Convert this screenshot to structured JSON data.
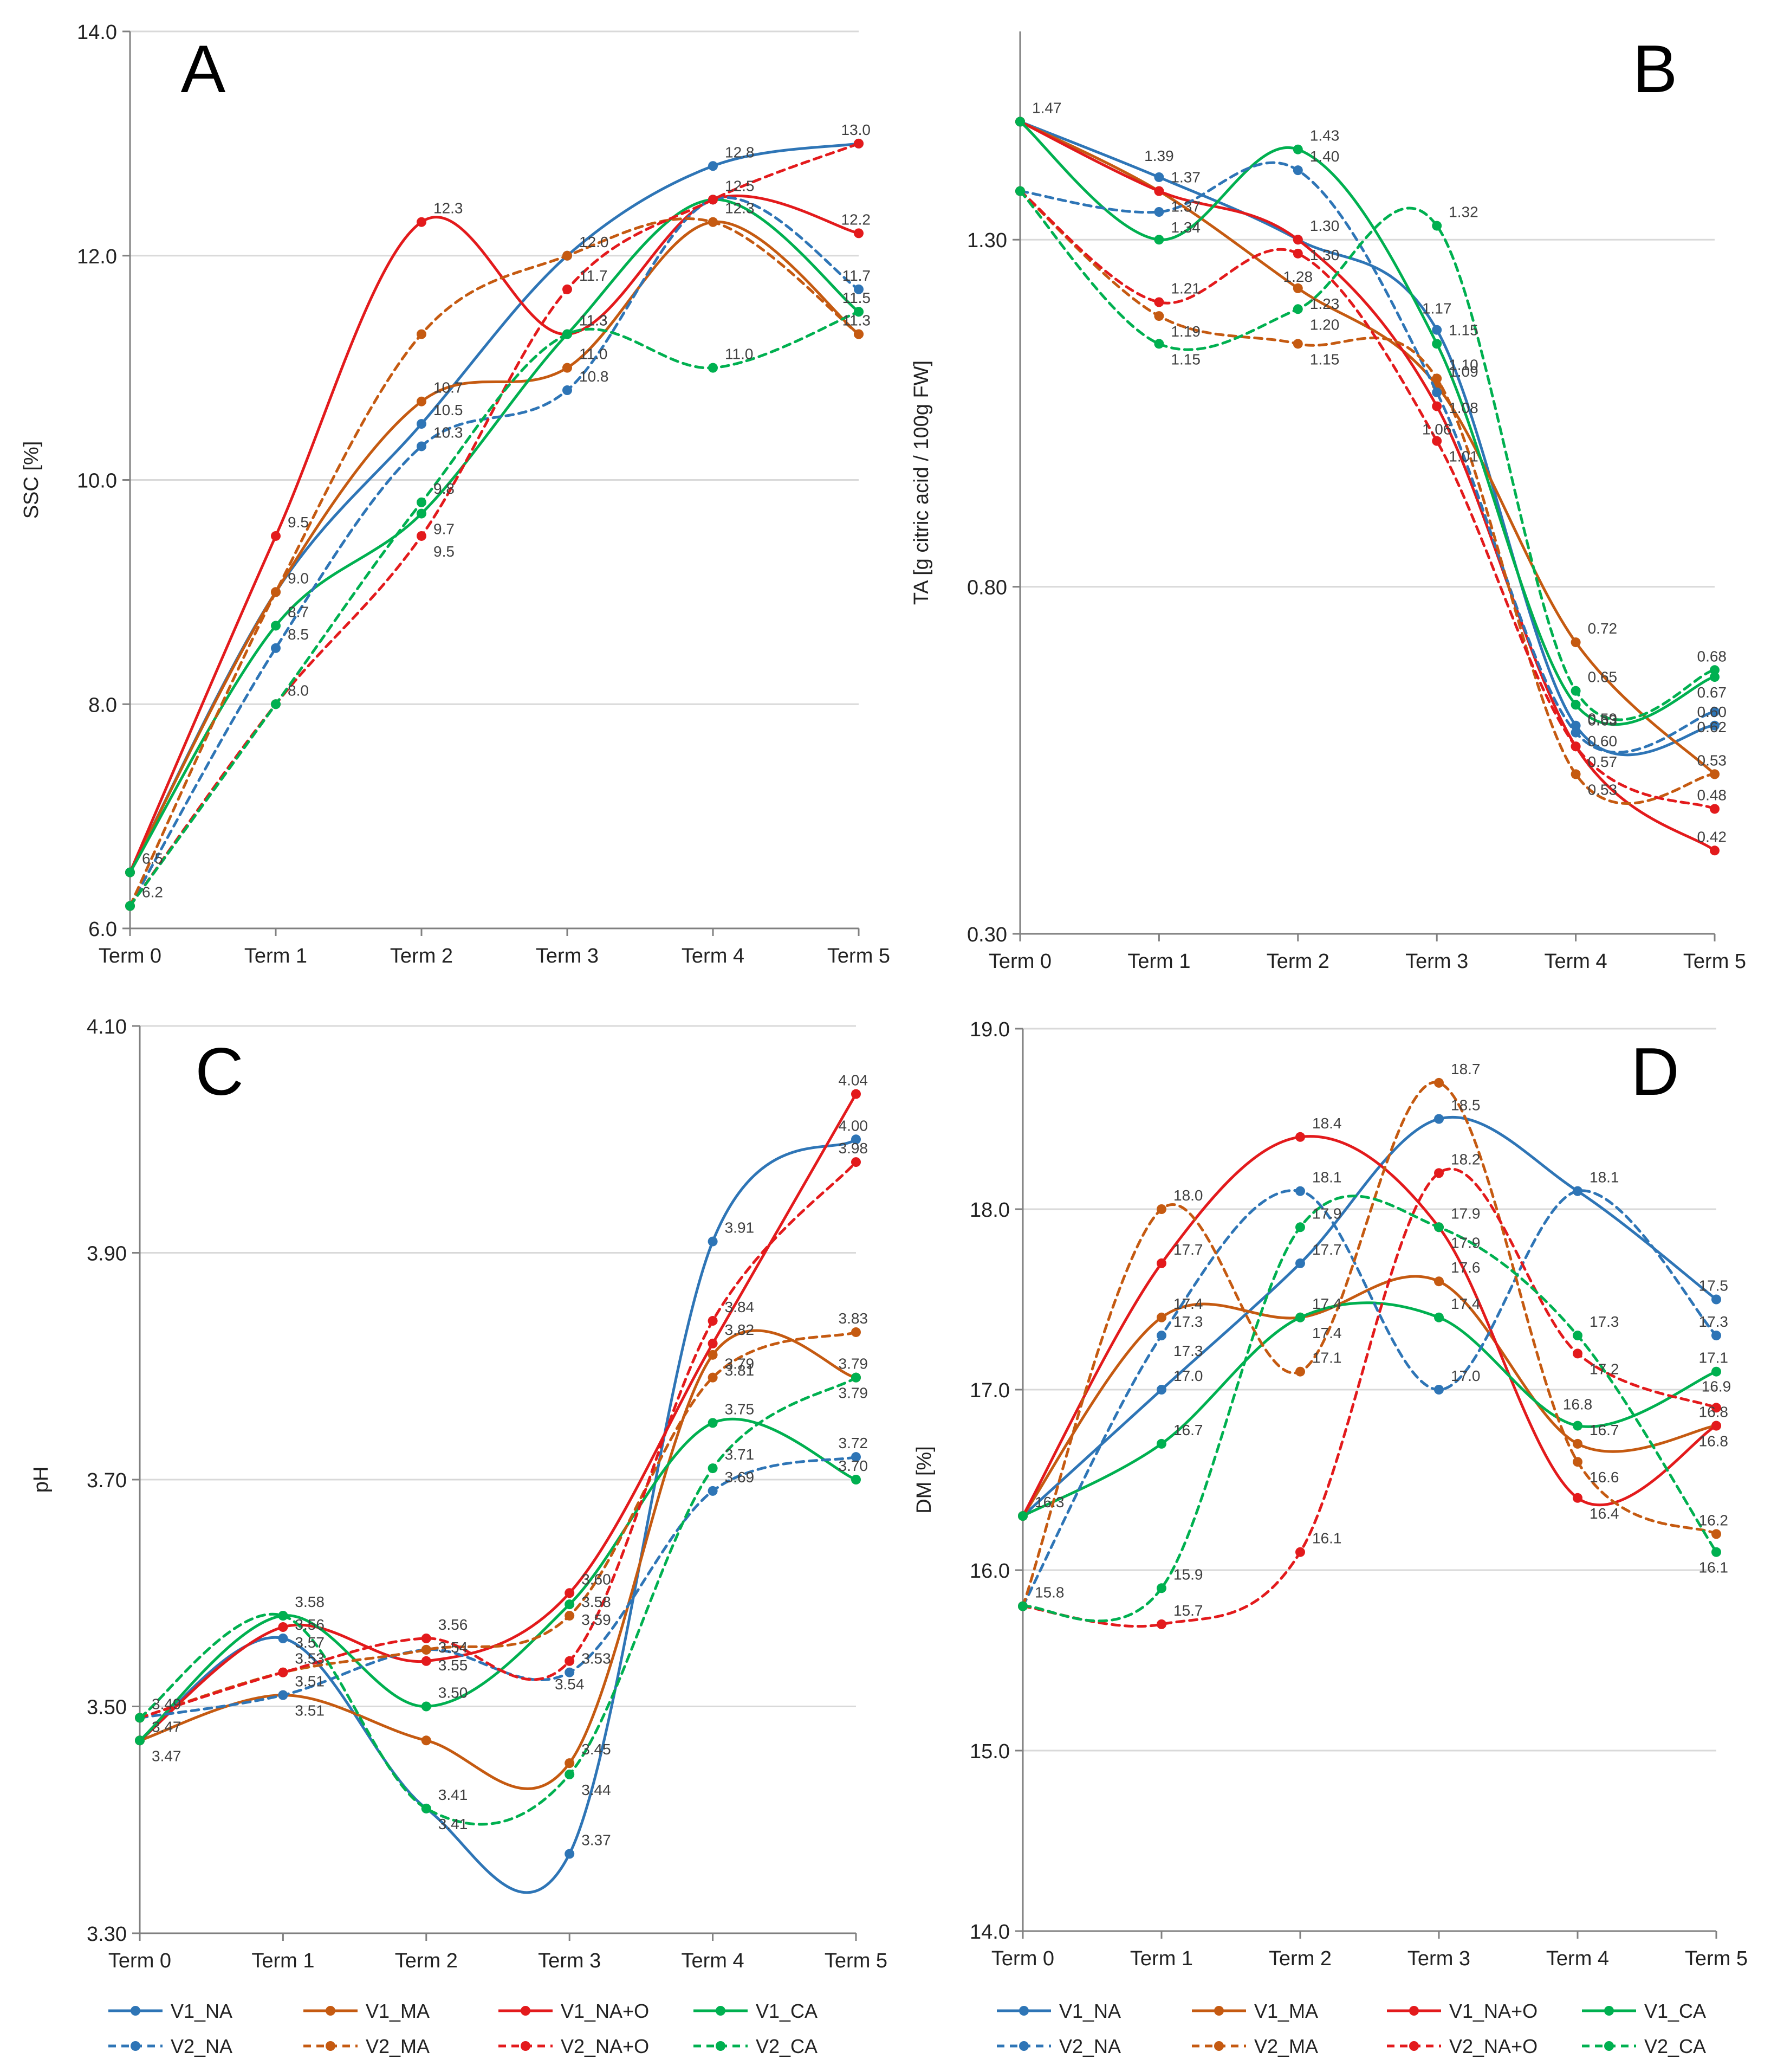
{
  "figure": {
    "series_styles": {
      "V1_NA": {
        "color": "#2E75B6",
        "dashed": false
      },
      "V1_MA": {
        "color": "#C55A11",
        "dashed": false
      },
      "V1_NA+O": {
        "color": "#E31A1C",
        "dashed": false
      },
      "V1_CA": {
        "color": "#00B050",
        "dashed": false
      },
      "V2_NA": {
        "color": "#2E75B6",
        "dashed": true
      },
      "V2_MA": {
        "color": "#C55A11",
        "dashed": true
      },
      "V2_NA+O": {
        "color": "#E31A1C",
        "dashed": true
      },
      "V2_CA": {
        "color": "#00B050",
        "dashed": true
      }
    },
    "colors": {
      "grid": "#d9d9d9",
      "axis": "#808080",
      "label": "#404040"
    }
  },
  "chart_data": [
    {
      "type": "line",
      "panel_letter": "A",
      "ylabel": "SSC [%]",
      "xlabel": "",
      "categories": [
        "Term 0",
        "Term 1",
        "Term 2",
        "Term 3",
        "Term 4",
        "Term 5"
      ],
      "ylim": [
        6.0,
        14.0
      ],
      "yticks": [
        "6.0",
        "8.0",
        "10.0",
        "12.0",
        "14.0"
      ],
      "decimals": 1,
      "grid": true,
      "series": [
        {
          "name": "V1_NA",
          "values": [
            6.5,
            9.0,
            10.5,
            12.0,
            12.8,
            13.0
          ]
        },
        {
          "name": "V1_MA",
          "values": [
            6.5,
            9.0,
            10.7,
            11.0,
            12.3,
            11.3
          ]
        },
        {
          "name": "V1_NA+O",
          "values": [
            6.5,
            9.5,
            12.3,
            11.3,
            12.5,
            12.2
          ]
        },
        {
          "name": "V1_CA",
          "values": [
            6.5,
            8.7,
            9.7,
            11.3,
            12.5,
            11.5
          ]
        },
        {
          "name": "V2_NA",
          "values": [
            6.2,
            8.5,
            10.3,
            10.8,
            12.5,
            11.7
          ]
        },
        {
          "name": "V2_MA",
          "values": [
            6.2,
            9.0,
            11.3,
            12.0,
            12.3,
            11.3
          ]
        },
        {
          "name": "V2_NA+O",
          "values": [
            6.2,
            8.0,
            9.5,
            11.7,
            12.5,
            13.0
          ]
        },
        {
          "name": "V2_CA",
          "values": [
            6.2,
            8.0,
            9.8,
            11.3,
            11.0,
            11.5
          ]
        }
      ],
      "data_labels": [
        "6.5",
        "6.2",
        "9.5",
        "9.0",
        "8.7",
        "8.5",
        "8.0",
        "12.3",
        "11.3",
        "10.7",
        "10.5",
        "10.3",
        "9.8",
        "9.7",
        "9.5",
        "12.0",
        "11.7",
        "11.3",
        "11.0",
        "10.8",
        "12.8",
        "12.5",
        "12.3",
        "11.0",
        "13.0",
        "12.2",
        "11.7",
        "11.5",
        "11.3"
      ]
    },
    {
      "type": "line",
      "panel_letter": "B",
      "ylabel": "TA [g citric acid / 100g FW]",
      "xlabel": "",
      "categories": [
        "Term 0",
        "Term 1",
        "Term 2",
        "Term 3",
        "Term 4",
        "Term 5"
      ],
      "ylim": [
        0.3,
        1.6
      ],
      "yticks": [
        "0.30",
        "0.80",
        "1.30"
      ],
      "decimals": 2,
      "grid": true,
      "series": [
        {
          "name": "V1_NA",
          "values": [
            1.47,
            1.39,
            1.3,
            1.17,
            0.6,
            0.6
          ]
        },
        {
          "name": "V1_MA",
          "values": [
            1.47,
            1.37,
            1.23,
            1.09,
            0.72,
            0.53
          ]
        },
        {
          "name": "V1_NA+O",
          "values": [
            1.47,
            1.37,
            1.3,
            1.06,
            0.57,
            0.42
          ]
        },
        {
          "name": "V1_CA",
          "values": [
            1.47,
            1.3,
            1.43,
            1.15,
            0.63,
            0.67
          ]
        },
        {
          "name": "V2_NA",
          "values": [
            1.37,
            1.34,
            1.4,
            1.08,
            0.59,
            0.62
          ]
        },
        {
          "name": "V2_MA",
          "values": [
            1.37,
            1.19,
            1.15,
            1.1,
            0.53,
            0.53
          ]
        },
        {
          "name": "V2_NA+O",
          "values": [
            1.37,
            1.21,
            1.28,
            1.01,
            0.57,
            0.48
          ]
        },
        {
          "name": "V2_CA",
          "values": [
            1.37,
            1.15,
            1.2,
            1.32,
            0.65,
            0.68
          ]
        }
      ],
      "data_labels": [
        "1.47",
        "1.37",
        "1.39",
        "1.37",
        "1.34",
        "1.30",
        "1.21",
        "1.19",
        "1.15",
        "1.43",
        "1.40",
        "1.30",
        "1.28",
        "1.23",
        "1.20",
        "1.15",
        "1.32",
        "1.17",
        "1.15",
        "1.09",
        "1.08",
        "1.10",
        "1.06",
        "1.01",
        "0.72",
        "0.65",
        "0.63",
        "0.60",
        "0.59",
        "0.57",
        "0.53",
        "0.68",
        "0.67",
        "0.62",
        "0.60",
        "0.53",
        "0.48",
        "0.42"
      ]
    },
    {
      "type": "line",
      "panel_letter": "C",
      "ylabel": "pH",
      "xlabel": "",
      "categories": [
        "Term 0",
        "Term 1",
        "Term 2",
        "Term 3",
        "Term 4",
        "Term 5"
      ],
      "ylim": [
        3.3,
        4.1
      ],
      "yticks": [
        "3.30",
        "3.50",
        "3.70",
        "3.90",
        "4.10"
      ],
      "decimals": 2,
      "grid": true,
      "series": [
        {
          "name": "V1_NA",
          "values": [
            3.47,
            3.56,
            3.41,
            3.37,
            3.91,
            4.0
          ]
        },
        {
          "name": "V1_MA",
          "values": [
            3.47,
            3.51,
            3.47,
            3.45,
            3.81,
            3.79
          ]
        },
        {
          "name": "V1_NA+O",
          "values": [
            3.47,
            3.57,
            3.54,
            3.6,
            3.82,
            4.04
          ]
        },
        {
          "name": "V1_CA",
          "values": [
            3.47,
            3.58,
            3.5,
            3.59,
            3.75,
            3.7
          ]
        },
        {
          "name": "V2_NA",
          "values": [
            3.49,
            3.51,
            3.55,
            3.53,
            3.69,
            3.72
          ]
        },
        {
          "name": "V2_MA",
          "values": [
            3.49,
            3.53,
            3.55,
            3.58,
            3.79,
            3.83
          ]
        },
        {
          "name": "V2_NA+O",
          "values": [
            3.49,
            3.53,
            3.56,
            3.54,
            3.84,
            3.98
          ]
        },
        {
          "name": "V2_CA",
          "values": [
            3.49,
            3.58,
            3.41,
            3.44,
            3.71,
            3.79
          ]
        }
      ],
      "data_labels": [
        "3.49",
        "3.47",
        "3.58",
        "3.57",
        "3.56",
        "3.53",
        "3.51",
        "3.51",
        "3.56",
        "3.55",
        "3.54",
        "3.50",
        "3.47",
        "3.41",
        "3.41",
        "3.60",
        "3.59",
        "3.58",
        "3.54",
        "3.53",
        "3.45",
        "3.44",
        "3.37",
        "3.91",
        "3.84",
        "3.82",
        "3.81",
        "3.79",
        "3.75",
        "3.71",
        "3.69",
        "4.04",
        "4.00",
        "3.98",
        "3.83",
        "3.79",
        "3.79",
        "3.72",
        "3.70"
      ]
    },
    {
      "type": "line",
      "panel_letter": "D",
      "ylabel": "DM [%]",
      "xlabel": "",
      "categories": [
        "Term 0",
        "Term 1",
        "Term 2",
        "Term 3",
        "Term 4",
        "Term 5"
      ],
      "ylim": [
        14.0,
        19.0
      ],
      "yticks": [
        "14.0",
        "15.0",
        "16.0",
        "17.0",
        "18.0",
        "19.0"
      ],
      "decimals": 1,
      "grid": true,
      "series": [
        {
          "name": "V1_NA",
          "values": [
            16.3,
            17.0,
            17.7,
            18.5,
            18.1,
            17.5
          ]
        },
        {
          "name": "V1_MA",
          "values": [
            16.3,
            17.4,
            17.4,
            17.6,
            16.7,
            16.8
          ]
        },
        {
          "name": "V1_NA+O",
          "values": [
            16.3,
            17.7,
            18.4,
            17.9,
            16.4,
            16.8
          ]
        },
        {
          "name": "V1_CA",
          "values": [
            16.3,
            16.7,
            17.4,
            17.4,
            16.8,
            17.1
          ]
        },
        {
          "name": "V2_NA",
          "values": [
            15.8,
            17.3,
            18.1,
            17.0,
            18.1,
            17.3
          ]
        },
        {
          "name": "V2_MA",
          "values": [
            15.8,
            18.0,
            17.1,
            18.7,
            16.6,
            16.2
          ]
        },
        {
          "name": "V2_NA+O",
          "values": [
            15.8,
            15.7,
            16.1,
            18.2,
            17.2,
            16.9
          ]
        },
        {
          "name": "V2_CA",
          "values": [
            15.8,
            15.9,
            17.9,
            17.9,
            17.3,
            16.1
          ]
        }
      ],
      "data_labels": [
        "16.3",
        "15.8",
        "18.0",
        "17.7",
        "17.4",
        "17.3",
        "17.0",
        "16.7",
        "15.9",
        "15.7",
        "18.4",
        "18.1",
        "17.9",
        "17.7",
        "17.4",
        "17.4",
        "17.1",
        "16.1",
        "18.7",
        "18.5",
        "18.2",
        "17.9",
        "17.9",
        "17.6",
        "17.4",
        "17.0",
        "18.1",
        "17.3",
        "17.3",
        "17.2",
        "16.8",
        "16.7",
        "16.6",
        "16.4",
        "17.5",
        "17.3",
        "17.1",
        "16.9",
        "16.8",
        "16.8",
        "16.2",
        "16.1"
      ]
    }
  ],
  "legend": {
    "row1": [
      "V1_NA",
      "V1_MA",
      "V1_NA+O",
      "V1_CA"
    ],
    "row2": [
      "V2_NA",
      "V2_MA",
      "V2_NA+O",
      "V2_CA"
    ]
  }
}
